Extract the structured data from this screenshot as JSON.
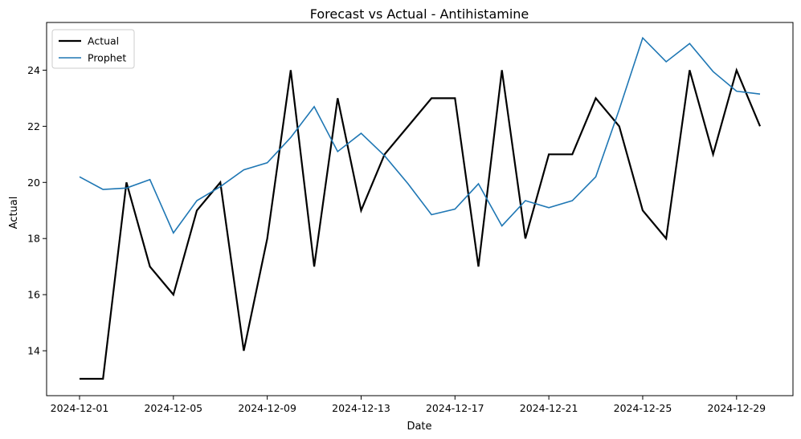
{
  "chart_data": {
    "type": "line",
    "title": "Forecast vs Actual - Antihistamine",
    "xlabel": "Date",
    "ylabel": "Actual",
    "x": [
      "2024-12-01",
      "2024-12-02",
      "2024-12-03",
      "2024-12-04",
      "2024-12-05",
      "2024-12-06",
      "2024-12-07",
      "2024-12-08",
      "2024-12-09",
      "2024-12-10",
      "2024-12-11",
      "2024-12-12",
      "2024-12-13",
      "2024-12-14",
      "2024-12-15",
      "2024-12-16",
      "2024-12-17",
      "2024-12-18",
      "2024-12-19",
      "2024-12-20",
      "2024-12-21",
      "2024-12-22",
      "2024-12-23",
      "2024-12-24",
      "2024-12-25",
      "2024-12-26",
      "2024-12-27",
      "2024-12-28",
      "2024-12-29",
      "2024-12-30"
    ],
    "x_ticks": [
      "2024-12-01",
      "2024-12-05",
      "2024-12-09",
      "2024-12-13",
      "2024-12-17",
      "2024-12-21",
      "2024-12-25",
      "2024-12-29"
    ],
    "y_ticks": [
      14,
      16,
      18,
      20,
      22,
      24
    ],
    "ylim": [
      12.4,
      25.7
    ],
    "legend_position": "top-left",
    "grid": false,
    "series": [
      {
        "name": "Actual",
        "color": "#000000",
        "values": [
          13,
          13,
          20,
          17,
          16,
          19,
          20,
          14,
          18,
          24,
          17,
          23,
          19,
          21,
          22,
          23,
          23,
          17,
          24,
          18,
          21,
          21,
          23,
          22,
          19,
          18,
          24,
          21,
          24,
          22
        ]
      },
      {
        "name": "Prophet",
        "color": "#1f77b4",
        "values": [
          20.2,
          19.75,
          19.8,
          20.1,
          18.2,
          19.35,
          19.85,
          20.45,
          20.7,
          21.6,
          22.7,
          21.1,
          21.75,
          20.95,
          19.95,
          18.85,
          19.05,
          19.95,
          18.45,
          19.35,
          19.1,
          19.35,
          20.2,
          22.6,
          25.15,
          24.3,
          24.95,
          23.95,
          23.25,
          23.15
        ]
      }
    ]
  }
}
